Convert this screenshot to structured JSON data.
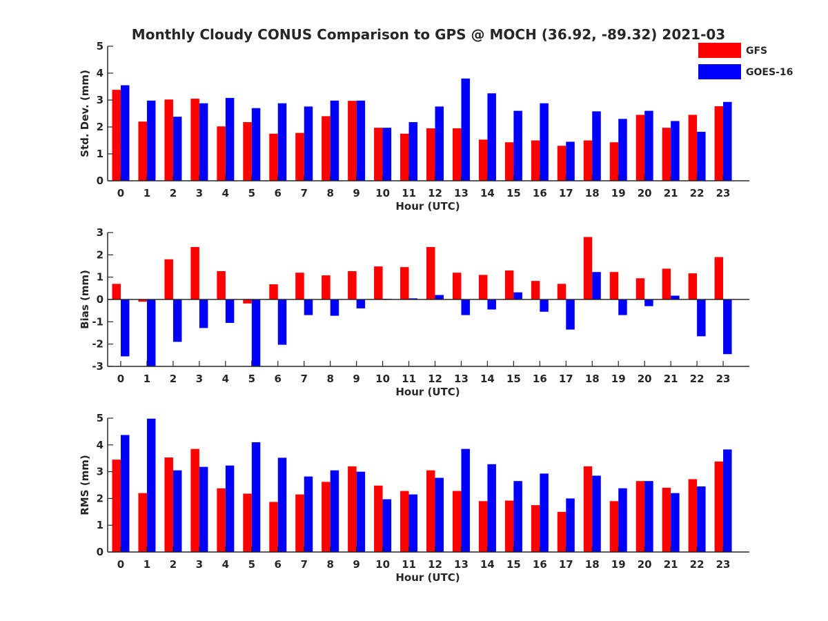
{
  "chart_data": {
    "type": "bar",
    "title": "Monthly Cloudy CONUS Comparison to GPS @ MOCH (36.92, -89.32) 2021-03",
    "categories": [
      "0",
      "1",
      "2",
      "3",
      "4",
      "5",
      "6",
      "7",
      "8",
      "9",
      "10",
      "11",
      "12",
      "13",
      "14",
      "15",
      "16",
      "17",
      "18",
      "19",
      "20",
      "21",
      "22",
      "23"
    ],
    "legend": {
      "placement": "top-right",
      "entries": [
        {
          "name": "GFS",
          "color": "#ff0000"
        },
        {
          "name": "GOES-16",
          "color": "#0000ff"
        }
      ]
    },
    "panels": [
      {
        "xlabel": "Hour (UTC)",
        "ylabel": "Std. Dev. (mm)",
        "ylim": [
          0,
          5
        ],
        "yticks": [
          "0",
          "1",
          "2",
          "3",
          "4",
          "5"
        ],
        "series": [
          {
            "name": "GFS",
            "color": "#ff0000",
            "values": [
              3.38,
              2.2,
              3.02,
              3.05,
              2.02,
              2.18,
              1.75,
              1.78,
              2.4,
              2.97,
              1.97,
              1.75,
              1.95,
              1.95,
              1.53,
              1.43,
              1.5,
              1.3,
              1.5,
              1.43,
              2.45,
              1.97,
              2.45,
              2.77
            ]
          },
          {
            "name": "GOES-16",
            "color": "#0000ff",
            "values": [
              3.55,
              2.98,
              2.38,
              2.88,
              3.08,
              2.7,
              2.88,
              2.76,
              2.98,
              2.98,
              1.97,
              2.18,
              2.76,
              3.8,
              3.25,
              2.6,
              2.88,
              1.45,
              2.58,
              2.3,
              2.6,
              2.22,
              1.82,
              2.93
            ]
          }
        ]
      },
      {
        "xlabel": "Hour (UTC)",
        "ylabel": "Bias (mm)",
        "ylim": [
          -3,
          3
        ],
        "yticks": [
          "-3",
          "-2",
          "-1",
          "0",
          "1",
          "2",
          "3"
        ],
        "series": [
          {
            "name": "GFS",
            "color": "#ff0000",
            "values": [
              0.7,
              -0.1,
              1.8,
              2.35,
              1.27,
              -0.18,
              0.68,
              1.2,
              1.08,
              1.27,
              1.48,
              1.45,
              2.35,
              1.2,
              1.1,
              1.3,
              0.83,
              0.7,
              2.8,
              1.23,
              0.95,
              1.38,
              1.17,
              1.9
            ]
          },
          {
            "name": "GOES-16",
            "color": "#0000ff",
            "values": [
              -2.55,
              -3.0,
              -1.9,
              -1.28,
              -1.05,
              -3.0,
              -2.03,
              -0.7,
              -0.73,
              -0.4,
              0.03,
              0.05,
              0.2,
              -0.7,
              -0.45,
              0.32,
              -0.55,
              -1.35,
              1.23,
              -0.7,
              -0.3,
              0.17,
              -1.65,
              -2.45
            ]
          }
        ]
      },
      {
        "xlabel": "Hour (UTC)",
        "ylabel": "RMS (mm)",
        "ylim": [
          0,
          5
        ],
        "yticks": [
          "0",
          "1",
          "2",
          "3",
          "4",
          "5"
        ],
        "series": [
          {
            "name": "GFS",
            "color": "#ff0000",
            "values": [
              3.45,
              2.2,
              3.53,
              3.85,
              2.38,
              2.18,
              1.87,
              2.15,
              2.62,
              3.2,
              2.48,
              2.28,
              3.05,
              2.28,
              1.9,
              1.92,
              1.75,
              1.5,
              3.2,
              1.9,
              2.65,
              2.4,
              2.72,
              3.38
            ]
          },
          {
            "name": "GOES-16",
            "color": "#0000ff",
            "values": [
              4.37,
              4.98,
              3.05,
              3.18,
              3.23,
              4.1,
              3.52,
              2.82,
              3.05,
              3.0,
              1.97,
              2.15,
              2.77,
              3.85,
              3.28,
              2.65,
              2.93,
              2.0,
              2.85,
              2.38,
              2.65,
              2.2,
              2.45,
              3.83
            ]
          }
        ]
      }
    ]
  }
}
